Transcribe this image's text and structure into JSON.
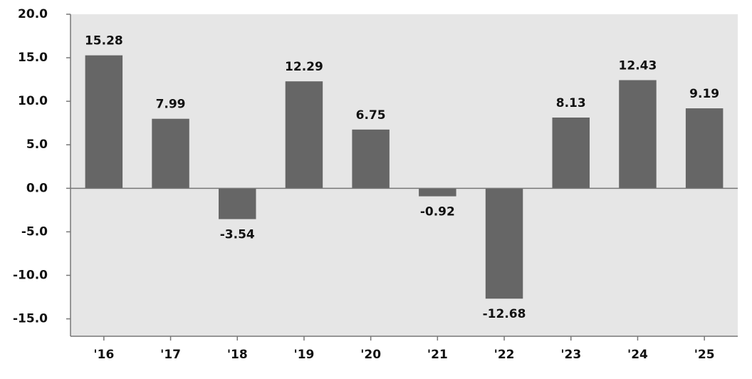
{
  "chart_data": {
    "type": "bar",
    "categories": [
      "'16",
      "'17",
      "'18",
      "'19",
      "'20",
      "'21",
      "'22",
      "'23",
      "'24",
      "'25"
    ],
    "values": [
      15.28,
      7.99,
      -3.54,
      12.29,
      6.75,
      -0.92,
      -12.68,
      8.13,
      12.43,
      9.19
    ],
    "color": "#666666",
    "ylim": [
      -17,
      20
    ],
    "yticks": [
      {
        "value": 20,
        "label": "20.0"
      },
      {
        "value": 15,
        "label": "15.0"
      },
      {
        "value": 10,
        "label": "10.0"
      },
      {
        "value": 5,
        "label": "5.0"
      },
      {
        "value": 0,
        "label": "0.0"
      },
      {
        "value": -5,
        "label": "-5.0"
      },
      {
        "value": -10,
        "label": "-10.0"
      },
      {
        "value": -15,
        "label": "-15.0"
      }
    ],
    "grid": false
  }
}
